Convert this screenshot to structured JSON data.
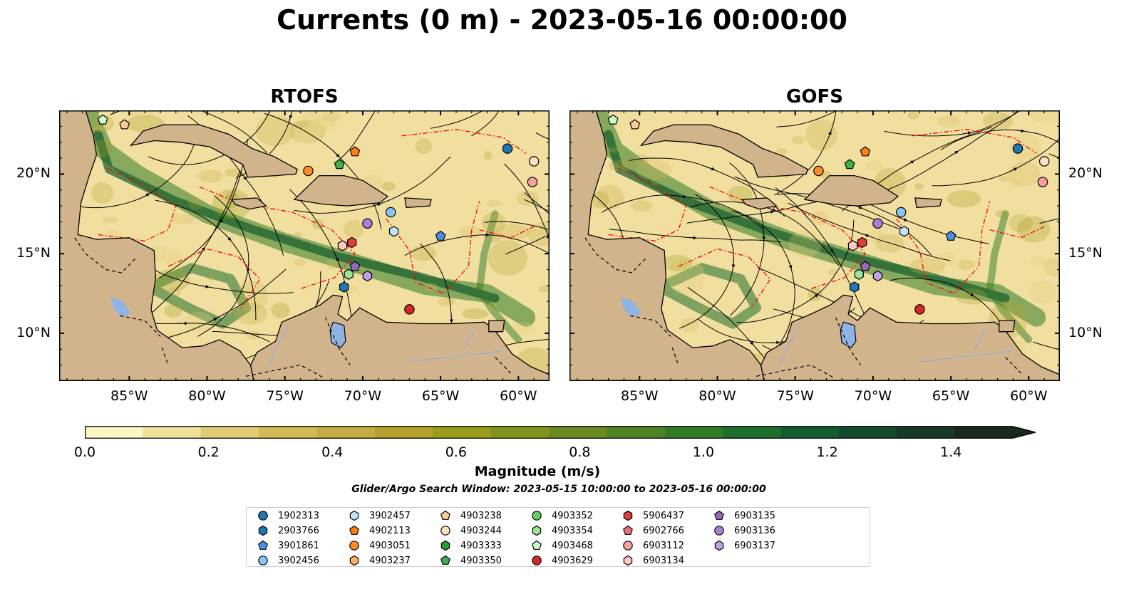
{
  "title": "Currents (0 m) - 2023-05-16 00:00:00",
  "panels": [
    {
      "id": "rtofs",
      "title": "RTOFS",
      "seed": 7
    },
    {
      "id": "gofs",
      "title": "GOFS",
      "seed": 13
    }
  ],
  "map": {
    "lon_range": [
      -89.5,
      -58.0
    ],
    "lat_range": [
      7.0,
      24.0
    ],
    "lon_ticks": [
      "85°W",
      "80°W",
      "75°W",
      "70°W",
      "65°W",
      "60°W"
    ],
    "lon_tick_values": [
      -85,
      -80,
      -75,
      -70,
      -65,
      -60
    ],
    "lat_ticks": [
      "20°N",
      "15°N",
      "10°N"
    ],
    "lat_tick_values": [
      20,
      15,
      10
    ],
    "colors": {
      "land": "#d2b48c",
      "water": "#f1dfa0",
      "lake": "#8fb4e3",
      "eez": "#ff0000",
      "stream": "#000000"
    }
  },
  "colorbar": {
    "label": "Magnitude (m/s)",
    "ticks": [
      "0.0",
      "0.2",
      "0.4",
      "0.6",
      "0.8",
      "1.0",
      "1.2",
      "1.4"
    ],
    "tick_values": [
      0.0,
      0.2,
      0.4,
      0.6,
      0.8,
      1.0,
      1.2,
      1.4
    ],
    "max": 1.5,
    "extend": "max",
    "colors": [
      "#fdf5c3",
      "#efe09a",
      "#e0cc75",
      "#d2ba57",
      "#c6ad43",
      "#b4a12e",
      "#9a9c1c",
      "#82951a",
      "#6a8b20",
      "#4f8324",
      "#327a27",
      "#1e6e2c",
      "#125c2e",
      "#134b2c",
      "#183a25",
      "#172a1c"
    ]
  },
  "search_window": "Glider/Argo Search Window: 2023-05-15 10:00:00 to 2023-05-16 00:00:00",
  "legend": [
    {
      "id": "1902313",
      "marker": "circle",
      "color": "#1f77b4"
    },
    {
      "id": "2903766",
      "marker": "hexagon",
      "color": "#1f77b4"
    },
    {
      "id": "3901861",
      "marker": "pentagon",
      "color": "#4a90e2"
    },
    {
      "id": "3902456",
      "marker": "circle",
      "color": "#8cc4f2"
    },
    {
      "id": "3902457",
      "marker": "hexagon",
      "color": "#bfe3ff"
    },
    {
      "id": "4902113",
      "marker": "pentagon",
      "color": "#ff7f0e"
    },
    {
      "id": "4903051",
      "marker": "circle",
      "color": "#ff8c2a"
    },
    {
      "id": "4903237",
      "marker": "hexagon",
      "color": "#ffb060"
    },
    {
      "id": "4903238",
      "marker": "pentagon",
      "color": "#ffcc99"
    },
    {
      "id": "4903244",
      "marker": "circle",
      "color": "#ffe0c2"
    },
    {
      "id": "4903333",
      "marker": "hexagon",
      "color": "#2ca02c"
    },
    {
      "id": "4903350",
      "marker": "pentagon",
      "color": "#3cb44b"
    },
    {
      "id": "4903352",
      "marker": "circle",
      "color": "#66cc66"
    },
    {
      "id": "4903354",
      "marker": "hexagon",
      "color": "#99e699"
    },
    {
      "id": "4903468",
      "marker": "pentagon",
      "color": "#ccffcc"
    },
    {
      "id": "4903629",
      "marker": "circle",
      "color": "#d62728"
    },
    {
      "id": "5906437",
      "marker": "hexagon",
      "color": "#e03c3c"
    },
    {
      "id": "6902766",
      "marker": "pentagon",
      "color": "#e8707a"
    },
    {
      "id": "6903112",
      "marker": "circle",
      "color": "#f4a0a0"
    },
    {
      "id": "6903134",
      "marker": "hexagon",
      "color": "#ffc8c0"
    },
    {
      "id": "6903135",
      "marker": "pentagon",
      "color": "#9467bd"
    },
    {
      "id": "6903136",
      "marker": "circle",
      "color": "#a880d6"
    },
    {
      "id": "6903137",
      "marker": "hexagon",
      "color": "#c0a0ea"
    }
  ],
  "floats": [
    {
      "id": "4903468",
      "lon": -86.7,
      "lat": 23.4
    },
    {
      "id": "4903238",
      "lon": -85.3,
      "lat": 23.1
    },
    {
      "id": "1902313",
      "lon": -60.7,
      "lat": 21.6
    },
    {
      "id": "4903244",
      "lon": -59.0,
      "lat": 20.8
    },
    {
      "id": "6903112",
      "lon": -59.1,
      "lat": 19.5
    },
    {
      "id": "4902113",
      "lon": -70.5,
      "lat": 21.4
    },
    {
      "id": "4903350",
      "lon": -71.5,
      "lat": 20.6
    },
    {
      "id": "4903051",
      "lon": -73.5,
      "lat": 20.2
    },
    {
      "id": "3902456",
      "lon": -68.2,
      "lat": 17.6
    },
    {
      "id": "3902457",
      "lon": -68.0,
      "lat": 16.4
    },
    {
      "id": "6903136",
      "lon": -69.7,
      "lat": 16.9
    },
    {
      "id": "3901861",
      "lon": -65.0,
      "lat": 16.1
    },
    {
      "id": "6903134",
      "lon": -71.3,
      "lat": 15.5
    },
    {
      "id": "5906437",
      "lon": -70.7,
      "lat": 15.7
    },
    {
      "id": "6903135",
      "lon": -70.5,
      "lat": 14.2
    },
    {
      "id": "4903354",
      "lon": -70.9,
      "lat": 13.7
    },
    {
      "id": "6903137",
      "lon": -69.7,
      "lat": 13.6
    },
    {
      "id": "2903766",
      "lon": -71.2,
      "lat": 12.9
    },
    {
      "id": "4903629",
      "lon": -67.0,
      "lat": 11.5
    }
  ]
}
